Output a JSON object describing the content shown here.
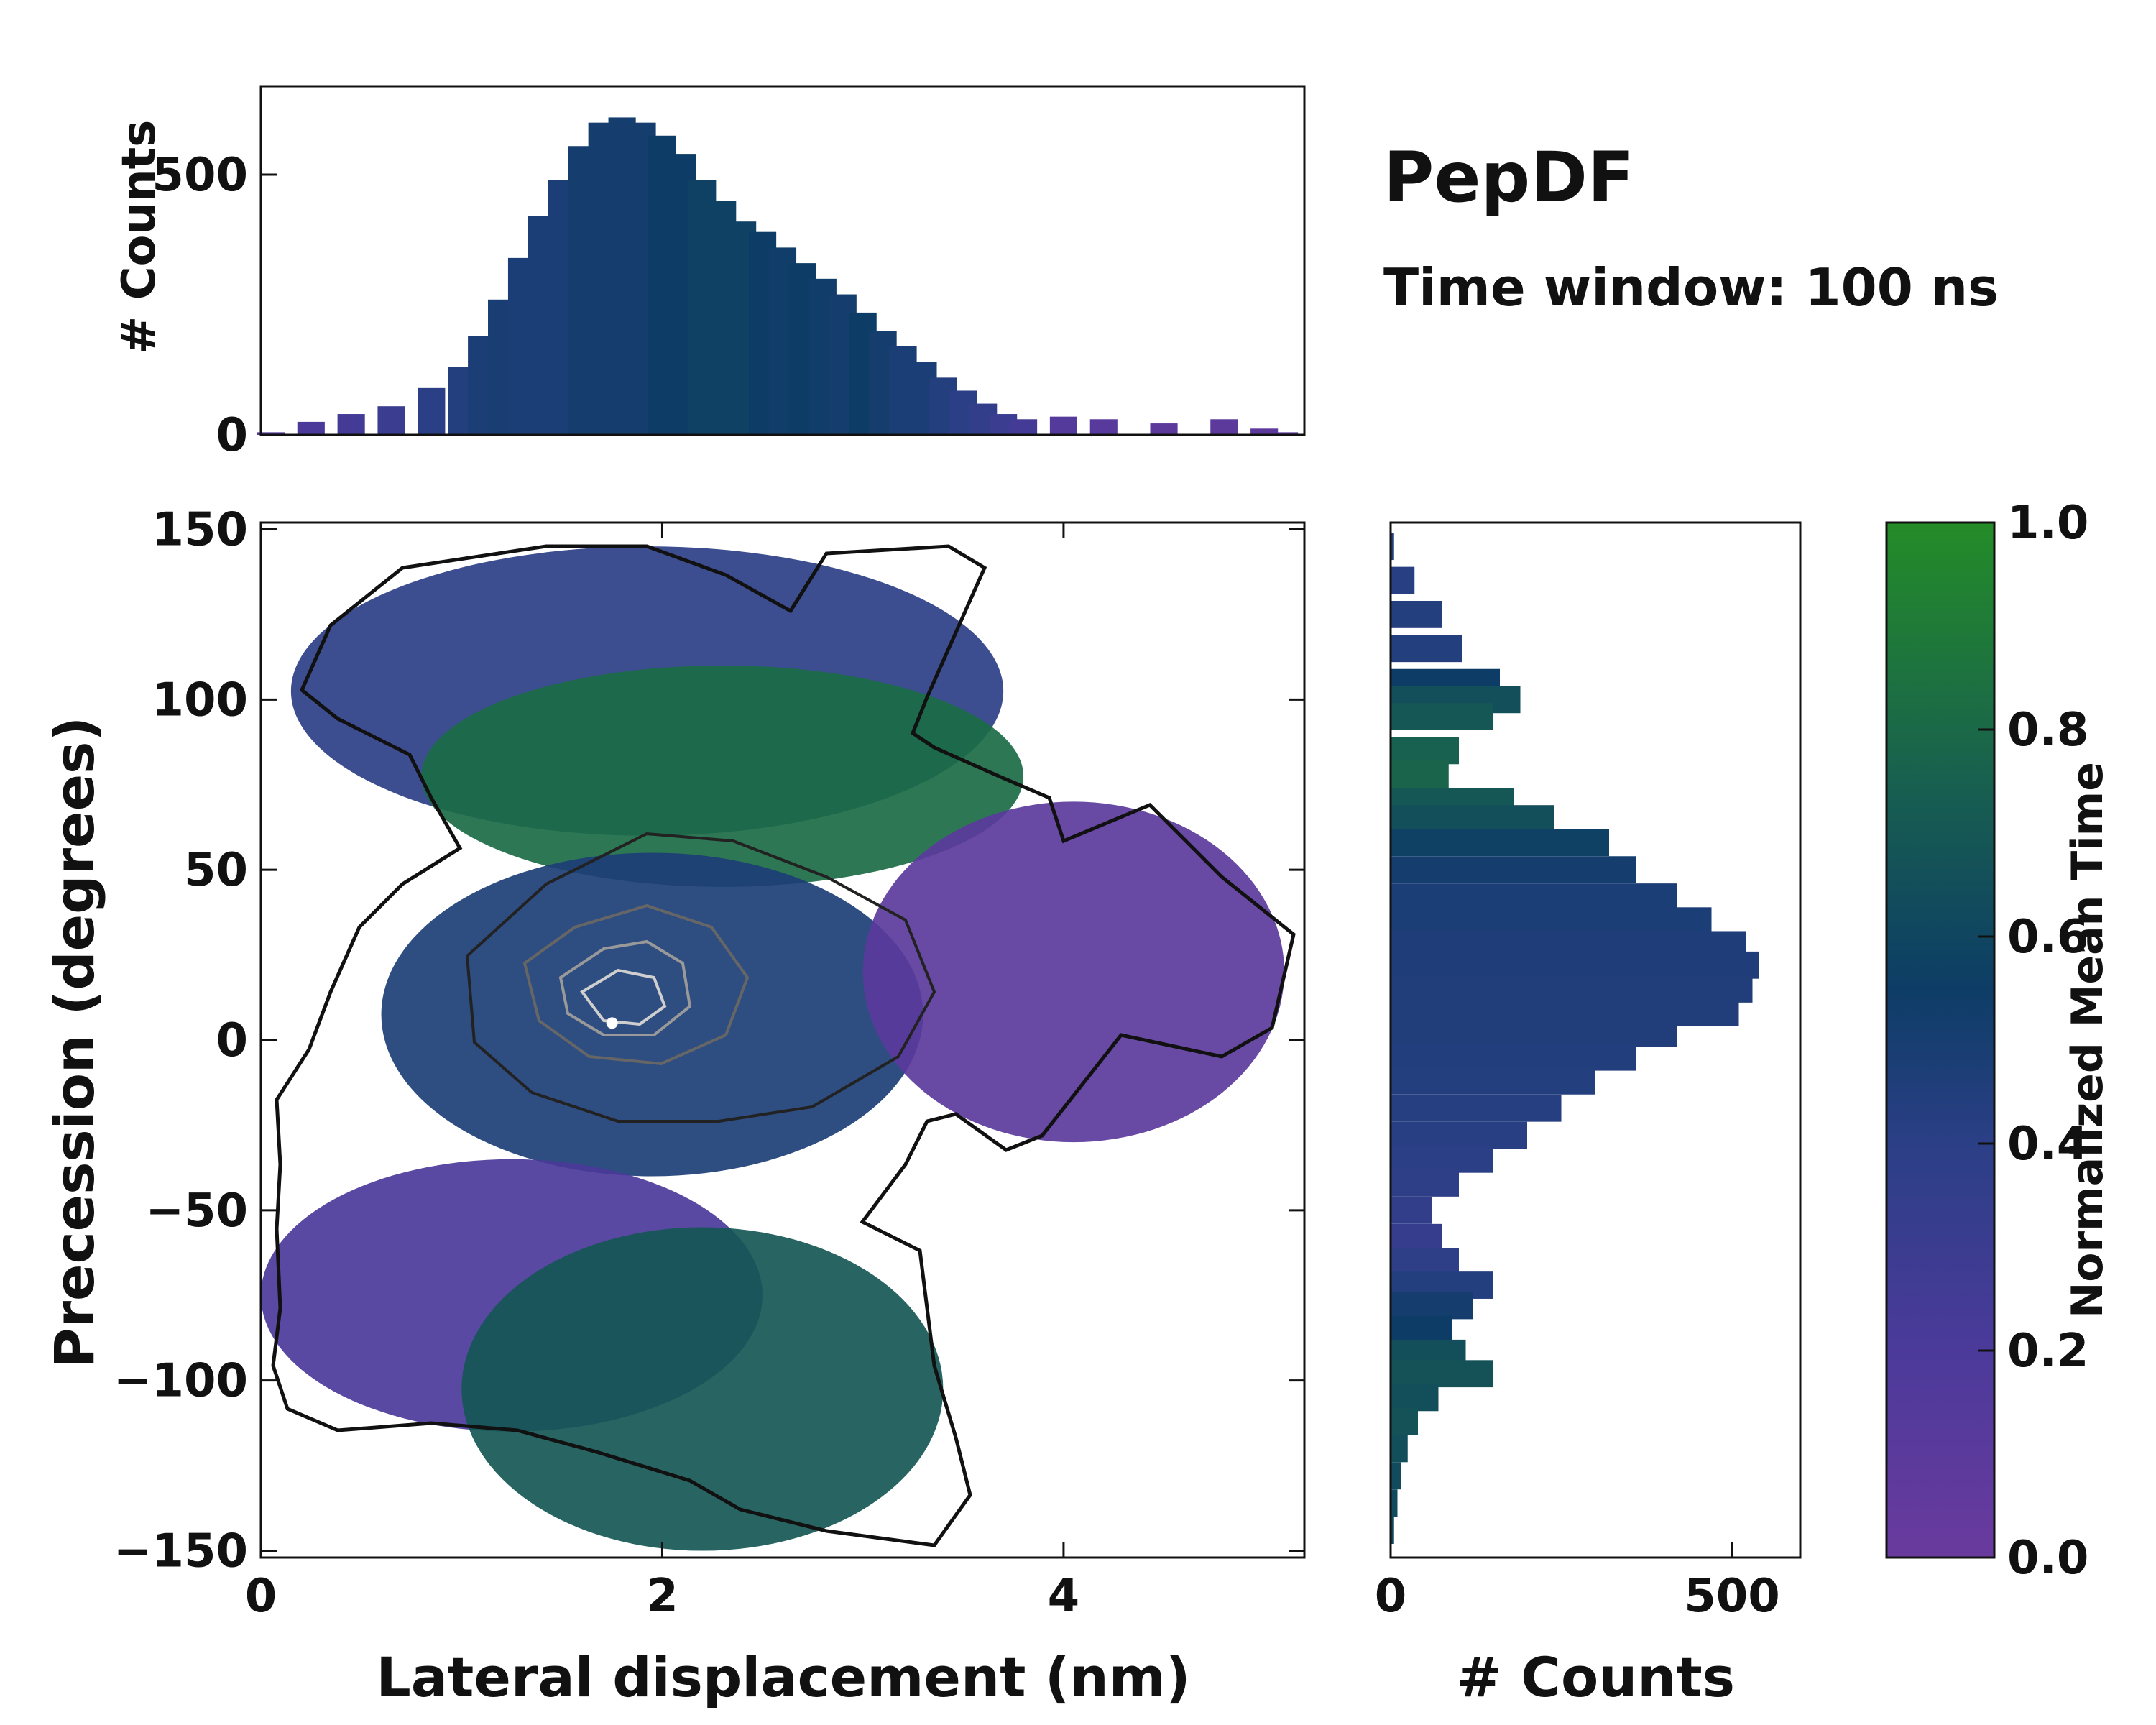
{
  "figure": {
    "title": "PepDF",
    "subtitle": "Time window: 100 ns"
  },
  "chart_data": [
    {
      "name": "main-heatmap",
      "type": "heatmap",
      "title": "",
      "xlabel": "Lateral displacement (nm)",
      "ylabel": "Precession (degrees)",
      "xlim": [
        0,
        5.2
      ],
      "ylim": [
        -152,
        152
      ],
      "xticks": [
        0,
        2,
        4
      ],
      "xtick_labels": [
        "0",
        "2",
        "4"
      ],
      "yticks": [
        150,
        100,
        50,
        0,
        -50,
        -100,
        -150
      ],
      "ytick_labels": [
        "150",
        "100",
        "50",
        "0",
        "−50",
        "−100",
        "−150"
      ],
      "color_meaning": "Normalized Mean Time (0 to 1)",
      "regions": [
        {
          "label": "upper-left blue lobe",
          "x": [
            0.15,
            3.7
          ],
          "y": [
            60,
            145
          ],
          "mean_time": 0.4
        },
        {
          "label": "green band",
          "x": [
            0.8,
            3.8
          ],
          "y": [
            45,
            110
          ],
          "mean_time": 0.85
        },
        {
          "label": "central core",
          "x": [
            0.6,
            3.3
          ],
          "y": [
            -40,
            55
          ],
          "mean_time": 0.5
        },
        {
          "label": "purple right lobe",
          "x": [
            3.0,
            5.1
          ],
          "y": [
            -30,
            70
          ],
          "mean_time": 0.1
        },
        {
          "label": "lower-left purple lobe",
          "x": [
            0.0,
            2.5
          ],
          "y": [
            -115,
            -35
          ],
          "mean_time": 0.2
        },
        {
          "label": "lower green lobe",
          "x": [
            1.0,
            3.4
          ],
          "y": [
            -150,
            -55
          ],
          "mean_time": 0.75
        }
      ],
      "density_peak": {
        "x": 1.75,
        "y": 5
      }
    },
    {
      "name": "top-histogram",
      "type": "bar",
      "xlabel": "",
      "ylabel": "# Counts",
      "xlim": [
        0,
        5.2
      ],
      "ylim": [
        0,
        670
      ],
      "yticks": [
        0,
        500
      ],
      "ytick_labels": [
        "0",
        "500"
      ],
      "x": [
        0.05,
        0.25,
        0.45,
        0.65,
        0.85,
        1.0,
        1.1,
        1.2,
        1.3,
        1.4,
        1.5,
        1.6,
        1.7,
        1.8,
        1.9,
        2.0,
        2.1,
        2.2,
        2.3,
        2.4,
        2.5,
        2.6,
        2.7,
        2.8,
        2.9,
        3.0,
        3.1,
        3.2,
        3.3,
        3.4,
        3.5,
        3.6,
        3.7,
        3.8,
        4.0,
        4.2,
        4.5,
        4.8,
        5.0,
        5.1
      ],
      "values": [
        5,
        25,
        40,
        55,
        90,
        130,
        190,
        260,
        340,
        420,
        490,
        555,
        600,
        610,
        600,
        575,
        540,
        490,
        450,
        410,
        390,
        360,
        330,
        300,
        270,
        235,
        200,
        170,
        140,
        110,
        85,
        60,
        40,
        30,
        35,
        30,
        22,
        30,
        12,
        5
      ],
      "mean_time": [
        0.15,
        0.2,
        0.25,
        0.3,
        0.4,
        0.45,
        0.5,
        0.52,
        0.5,
        0.5,
        0.5,
        0.55,
        0.55,
        0.55,
        0.55,
        0.6,
        0.6,
        0.62,
        0.62,
        0.62,
        0.6,
        0.58,
        0.6,
        0.58,
        0.55,
        0.6,
        0.55,
        0.5,
        0.5,
        0.45,
        0.4,
        0.35,
        0.3,
        0.25,
        0.15,
        0.12,
        0.1,
        0.1,
        0.1,
        0.1
      ]
    },
    {
      "name": "right-histogram",
      "type": "bar",
      "orientation": "horizontal",
      "xlabel": "# Counts",
      "ylabel": "",
      "xlim": [
        0,
        600
      ],
      "ylim": [
        -152,
        152
      ],
      "xticks": [
        0,
        500
      ],
      "xtick_labels": [
        "0",
        "500"
      ],
      "y": [
        145,
        135,
        125,
        115,
        105,
        100,
        95,
        85,
        78,
        70,
        65,
        58,
        50,
        42,
        35,
        28,
        22,
        15,
        8,
        2,
        -5,
        -12,
        -20,
        -28,
        -35,
        -42,
        -50,
        -58,
        -65,
        -72,
        -78,
        -85,
        -92,
        -98,
        -105,
        -112,
        -120,
        -128,
        -136,
        -144
      ],
      "values": [
        5,
        35,
        75,
        105,
        160,
        190,
        150,
        100,
        85,
        180,
        240,
        320,
        360,
        420,
        470,
        520,
        540,
        530,
        510,
        420,
        360,
        300,
        250,
        200,
        150,
        100,
        60,
        75,
        100,
        150,
        120,
        90,
        110,
        150,
        70,
        40,
        25,
        15,
        10,
        5
      ],
      "mean_time": [
        0.45,
        0.42,
        0.45,
        0.45,
        0.6,
        0.7,
        0.75,
        0.8,
        0.82,
        0.75,
        0.7,
        0.62,
        0.55,
        0.5,
        0.5,
        0.48,
        0.48,
        0.47,
        0.47,
        0.47,
        0.46,
        0.45,
        0.44,
        0.42,
        0.4,
        0.38,
        0.35,
        0.33,
        0.38,
        0.45,
        0.55,
        0.6,
        0.7,
        0.72,
        0.7,
        0.72,
        0.7,
        0.68,
        0.68,
        0.65
      ]
    },
    {
      "name": "colorbar",
      "type": "colorbar",
      "label": "Normalized Mean Time",
      "range": [
        0,
        1
      ],
      "ticks": [
        0,
        0.2,
        0.4,
        0.6,
        0.8,
        1.0
      ],
      "tick_labels": [
        "0.0",
        "0.2",
        "0.4",
        "0.6",
        "0.8",
        "1.0"
      ],
      "colors": [
        "#6a3a9e",
        "#4b3a9a",
        "#2b3f86",
        "#0d3d66",
        "#18604f",
        "#248c28"
      ]
    }
  ]
}
